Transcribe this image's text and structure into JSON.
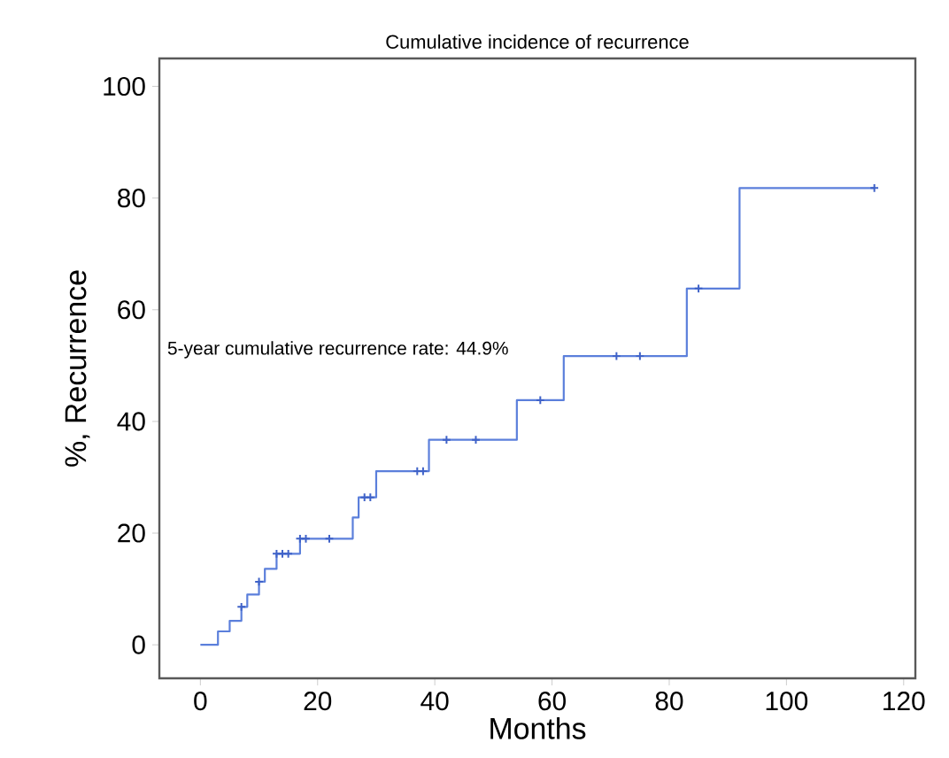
{
  "chart_data": {
    "type": "step",
    "title": "Cumulative incidence of recurrence",
    "xlabel": "Months",
    "ylabel": "%, Recurrence",
    "annotations": [
      "5-year cumulative recurrence rate: 44.9%"
    ],
    "xlim": [
      -7,
      122
    ],
    "ylim": [
      -6,
      105
    ],
    "xticks": [
      0,
      20,
      40,
      60,
      80,
      100,
      120
    ],
    "yticks": [
      0,
      20,
      40,
      60,
      80,
      100
    ],
    "grid": false,
    "series": [
      {
        "color": "#5b7fdb",
        "x": [
          0,
          3,
          5,
          7,
          8,
          10,
          11,
          13,
          17,
          26,
          27,
          30,
          39,
          54,
          62,
          83,
          92,
          115
        ],
        "values": [
          0,
          2.4,
          4.3,
          6.8,
          9,
          11.3,
          13.6,
          16.3,
          19,
          22.8,
          26.4,
          31.1,
          36.7,
          43.8,
          51.7,
          63.8,
          81.8,
          81.8
        ]
      },
      {
        "type": "scatter",
        "marker": "cross",
        "color": "#3f62c8",
        "x": [
          7,
          10,
          13,
          14,
          15,
          17,
          18,
          22,
          28,
          29,
          37,
          38,
          42,
          47,
          58,
          71,
          75,
          85,
          115
        ],
        "values": [
          6.8,
          11.3,
          16.3,
          16.3,
          16.3,
          19,
          19,
          19,
          26.4,
          26.4,
          31.1,
          31.1,
          36.7,
          36.7,
          43.8,
          51.7,
          51.7,
          63.8,
          81.8
        ]
      }
    ]
  }
}
